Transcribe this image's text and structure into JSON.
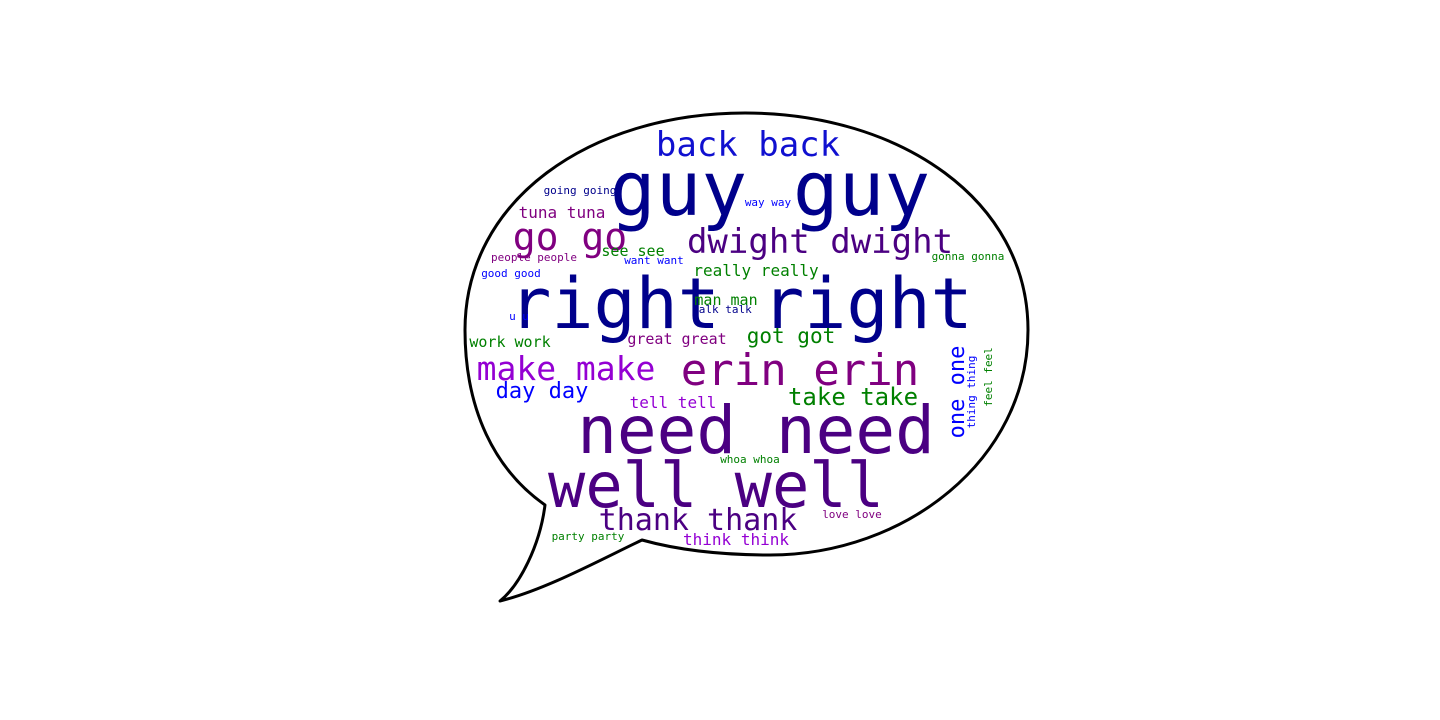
{
  "colors": {
    "navy": "#00008b",
    "indigo": "#4b0082",
    "purple": "#800080",
    "violet": "#9400d3",
    "blue": "#0000ff",
    "darkblue": "#1010d0",
    "green": "#008000",
    "greenlight": "#1a8a1a",
    "outline": "#000000",
    "background": "#ffffff"
  },
  "words": [
    {
      "text": "back back",
      "color": "darkblue"
    },
    {
      "text": "guy guy",
      "color": "navy"
    },
    {
      "text": "going going",
      "color": "navy"
    },
    {
      "text": "way way",
      "color": "blue"
    },
    {
      "text": "tuna tuna",
      "color": "purple"
    },
    {
      "text": "go go",
      "color": "purple"
    },
    {
      "text": "dwight dwight",
      "color": "indigo"
    },
    {
      "text": "see see",
      "color": "green"
    },
    {
      "text": "people people",
      "color": "purple"
    },
    {
      "text": "want want",
      "color": "blue"
    },
    {
      "text": "gonna gonna",
      "color": "green"
    },
    {
      "text": "good good",
      "color": "blue"
    },
    {
      "text": "really really",
      "color": "green"
    },
    {
      "text": "right right",
      "color": "navy"
    },
    {
      "text": "man man",
      "color": "green"
    },
    {
      "text": "talk talk",
      "color": "navy"
    },
    {
      "text": "u u",
      "color": "blue"
    },
    {
      "text": "work work",
      "color": "green"
    },
    {
      "text": "great great",
      "color": "purple"
    },
    {
      "text": "got got",
      "color": "green"
    },
    {
      "text": "make make",
      "color": "violet"
    },
    {
      "text": "erin erin",
      "color": "purple"
    },
    {
      "text": "one one",
      "color": "blue"
    },
    {
      "text": "thing thing",
      "color": "blue"
    },
    {
      "text": "feel feel",
      "color": "green"
    },
    {
      "text": "day day",
      "color": "blue"
    },
    {
      "text": "take take",
      "color": "green"
    },
    {
      "text": "tell tell",
      "color": "violet"
    },
    {
      "text": "need need",
      "color": "indigo"
    },
    {
      "text": "whoa whoa",
      "color": "green"
    },
    {
      "text": "well well",
      "color": "indigo"
    },
    {
      "text": "thank thank",
      "color": "indigo"
    },
    {
      "text": "love love",
      "color": "purple"
    },
    {
      "text": "party party",
      "color": "green"
    },
    {
      "text": "think think",
      "color": "violet"
    }
  ]
}
